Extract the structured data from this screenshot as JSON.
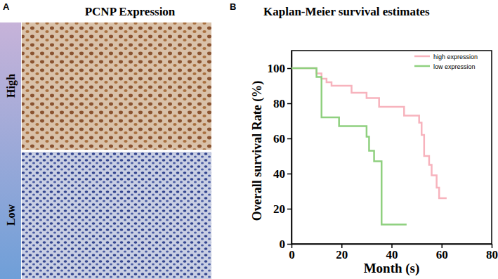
{
  "panel_a": {
    "label": "A",
    "title": "PCNP Expression",
    "rows": [
      "High",
      "Low"
    ]
  },
  "panel_b": {
    "label": "B"
  },
  "chart_data": {
    "type": "line",
    "title": "Kaplan-Meier survival estimates",
    "x_label": "Month (s)",
    "y_label": "Overall survival Rate (%)",
    "xlim": [
      0,
      80
    ],
    "xticks": [
      0,
      20,
      40,
      60,
      80
    ],
    "ylim": [
      0,
      110
    ],
    "yticks": [
      0,
      20,
      40,
      60,
      80,
      100
    ],
    "legend": "upper right",
    "series": [
      {
        "name": "high expression",
        "color": "#f7b3bd",
        "line_style": "step",
        "x": [
          0,
          10,
          12,
          14,
          16,
          24,
          30,
          35,
          45,
          51,
          52,
          53,
          55,
          56,
          58,
          59,
          62
        ],
        "values": [
          100,
          97,
          94,
          92,
          90,
          86,
          83,
          78,
          73,
          69,
          62,
          50,
          45,
          39,
          32,
          26,
          26
        ]
      },
      {
        "name": "low expression",
        "color": "#8fd07f",
        "line_style": "step",
        "x": [
          0,
          10,
          12,
          19,
          30,
          31,
          33,
          36,
          46
        ],
        "values": [
          100,
          95,
          72,
          67,
          61,
          53,
          47,
          11,
          11
        ]
      }
    ]
  }
}
